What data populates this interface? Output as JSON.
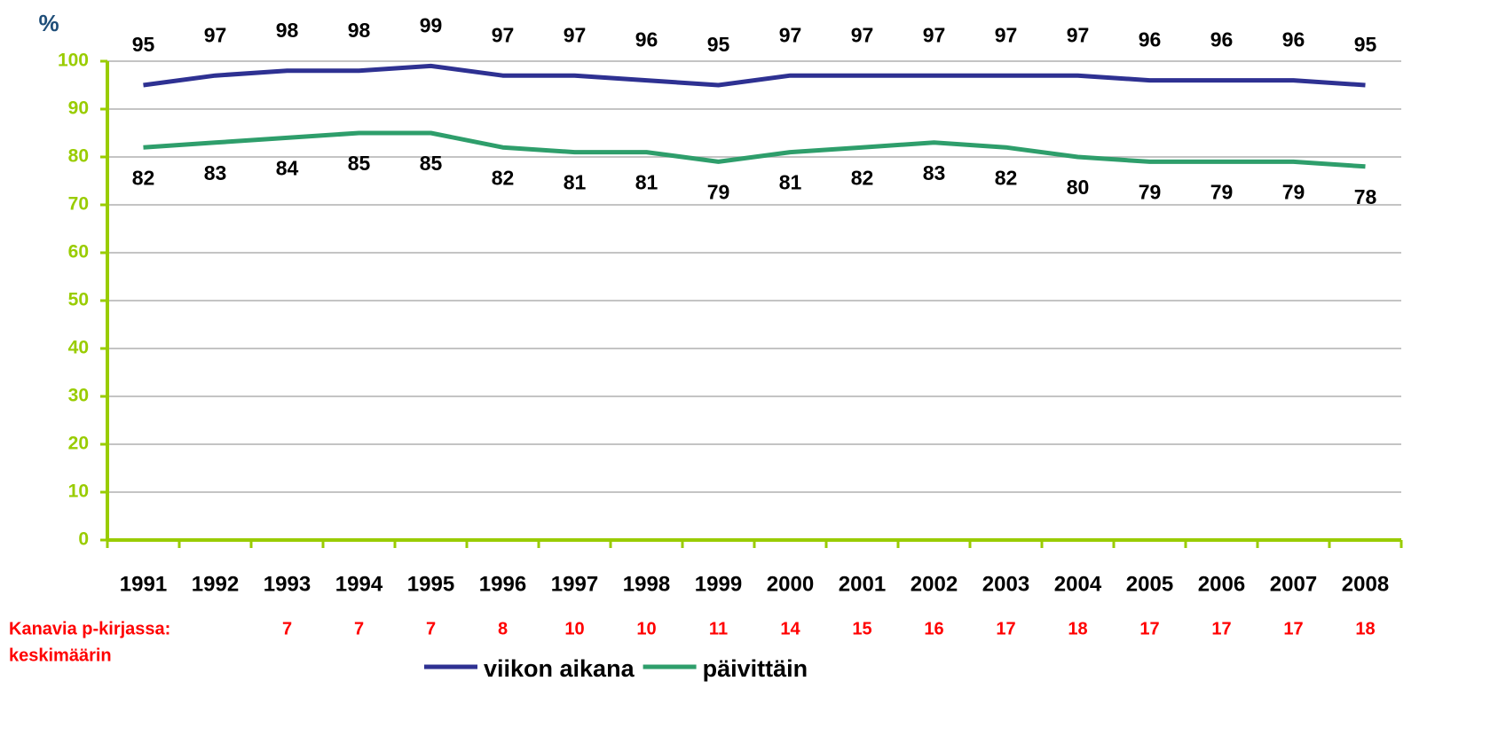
{
  "chart_data": {
    "type": "line",
    "y_label": "%",
    "categories": [
      "1991",
      "1992",
      "1993",
      "1994",
      "1995",
      "1996",
      "1997",
      "1998",
      "1999",
      "2000",
      "2001",
      "2002",
      "2003",
      "2004",
      "2005",
      "2006",
      "2007",
      "2008"
    ],
    "series": [
      {
        "name": "viikon aikana",
        "color": "#2e3192",
        "values": [
          95,
          97,
          98,
          98,
          99,
          97,
          97,
          96,
          95,
          97,
          97,
          97,
          97,
          97,
          96,
          96,
          96,
          95
        ]
      },
      {
        "name": "päivittäin",
        "color": "#2e9e6b",
        "values": [
          82,
          83,
          84,
          85,
          85,
          82,
          81,
          81,
          79,
          81,
          82,
          83,
          82,
          80,
          79,
          79,
          79,
          78
        ]
      }
    ],
    "ylim": [
      0,
      100
    ],
    "yticks": [
      0,
      10,
      20,
      30,
      40,
      50,
      60,
      70,
      80,
      90,
      100
    ],
    "grid": true,
    "annotation": {
      "lines": [
        "Kanavia p-kirjassa:",
        "keskimäärin"
      ],
      "values": [
        null,
        null,
        7,
        7,
        7,
        8,
        10,
        10,
        11,
        14,
        15,
        16,
        17,
        18,
        17,
        17,
        17,
        18
      ],
      "color": "#ff0000"
    },
    "legend": "bottom"
  }
}
